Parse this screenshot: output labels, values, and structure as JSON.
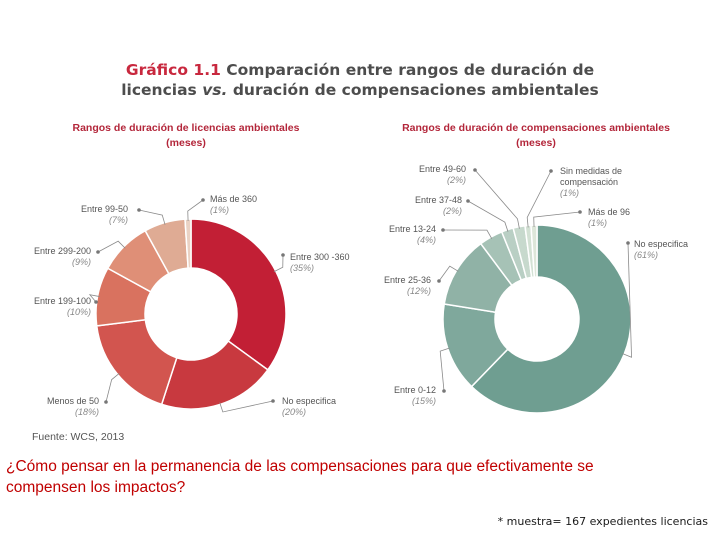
{
  "header": {
    "title_number": "Gráfico 1.1",
    "title_line1_rest": "Comparación entre rangos de duración de",
    "title_line2_a": "licencias",
    "title_line2_vs": "vs.",
    "title_line2_b": "duración de compensaciones ambientales"
  },
  "chart_data": [
    {
      "type": "pie",
      "donut": true,
      "title": "Rangos de duración de licencias ambientales",
      "unit": "(meses)",
      "slices": [
        {
          "label": "Entre 300 -360",
          "pct_label": "(35%)",
          "value": 35,
          "color": "#c21f35"
        },
        {
          "label": "No especifica",
          "pct_label": "(20%)",
          "value": 20,
          "color": "#c8393f"
        },
        {
          "label": "Menos de 50",
          "pct_label": "(18%)",
          "value": 18,
          "color": "#d2554f"
        },
        {
          "label": "Entre 199-100",
          "pct_label": "(10%)",
          "value": 10,
          "color": "#d9725f"
        },
        {
          "label": "Entre 299-200",
          "pct_label": "(9%)",
          "value": 9,
          "color": "#df8f77"
        },
        {
          "label": "Entre 99-50",
          "pct_label": "(7%)",
          "value": 7,
          "color": "#dfab94"
        },
        {
          "label": "Más de 360",
          "pct_label": "(1%)",
          "value": 1,
          "color": "#ead2c4"
        }
      ]
    },
    {
      "type": "pie",
      "donut": true,
      "title": "Rangos de duración de compensaciones ambientales",
      "unit": "(meses)",
      "slices": [
        {
          "label": "No especifica",
          "pct_label": "(61%)",
          "value": 61,
          "color": "#6f9e91"
        },
        {
          "label": "Entre 0-12",
          "pct_label": "(15%)",
          "value": 15,
          "color": "#7fa89c"
        },
        {
          "label": "Entre 25-36",
          "pct_label": "(12%)",
          "value": 12,
          "color": "#90b2a6"
        },
        {
          "label": "Entre 13-24",
          "pct_label": "(4%)",
          "value": 4,
          "color": "#a6c2b6"
        },
        {
          "label": "Entre 37-48",
          "pct_label": "(2%)",
          "value": 2,
          "color": "#b9cfc4"
        },
        {
          "label": "Entre 49-60",
          "pct_label": "(2%)",
          "value": 2,
          "color": "#c7d9cd"
        },
        {
          "label": "Sin medidas de compensación",
          "pct_label": "(1%)",
          "value": 1,
          "color": "#d3e1d4"
        },
        {
          "label": "Más de 96",
          "pct_label": "(1%)",
          "value": 1,
          "color": "#dde6d9"
        }
      ]
    }
  ],
  "source": "Fuente: WCS, 2013",
  "question": "¿Cómo pensar en la permanencia de las compensaciones para que efectivamente se compensen los impactos?",
  "note": "* muestra= 167 expedientes licencias"
}
